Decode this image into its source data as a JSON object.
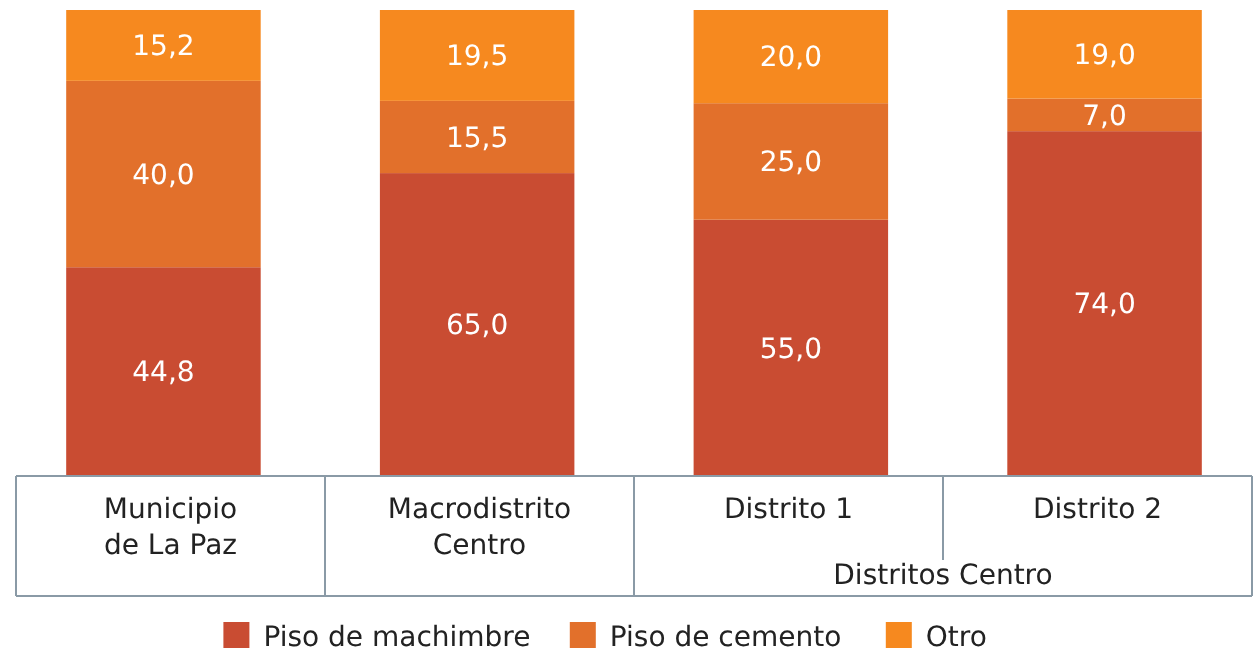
{
  "chart_data": {
    "type": "bar",
    "stacked": true,
    "categories": [
      "Municipio de La Paz",
      "Macrodistrito Centro",
      "Distrito 1",
      "Distrito 2"
    ],
    "ylim": [
      0,
      100
    ],
    "tick_labels": "x",
    "legend": "bottom",
    "annotations": [
      "Distritos Centro"
    ],
    "series": [
      {
        "name": "Piso de machimbre",
        "color": "#c94c32",
        "values": [
          44.8,
          65.0,
          55.0,
          74.0
        ],
        "value_labels": [
          "44,8",
          "65,0",
          "55,0",
          "74,0"
        ]
      },
      {
        "name": "Piso de cemento",
        "color": "#e2702b",
        "values": [
          40.0,
          15.5,
          25.0,
          7.0
        ],
        "value_labels": [
          "40,0",
          "15,5",
          "25,0",
          "7,0"
        ]
      },
      {
        "name": "Otro",
        "color": "#f6891f",
        "values": [
          15.2,
          19.5,
          20.0,
          19.0
        ],
        "value_labels": [
          "15,2",
          "19,5",
          "20,0",
          "19,0"
        ]
      }
    ]
  }
}
